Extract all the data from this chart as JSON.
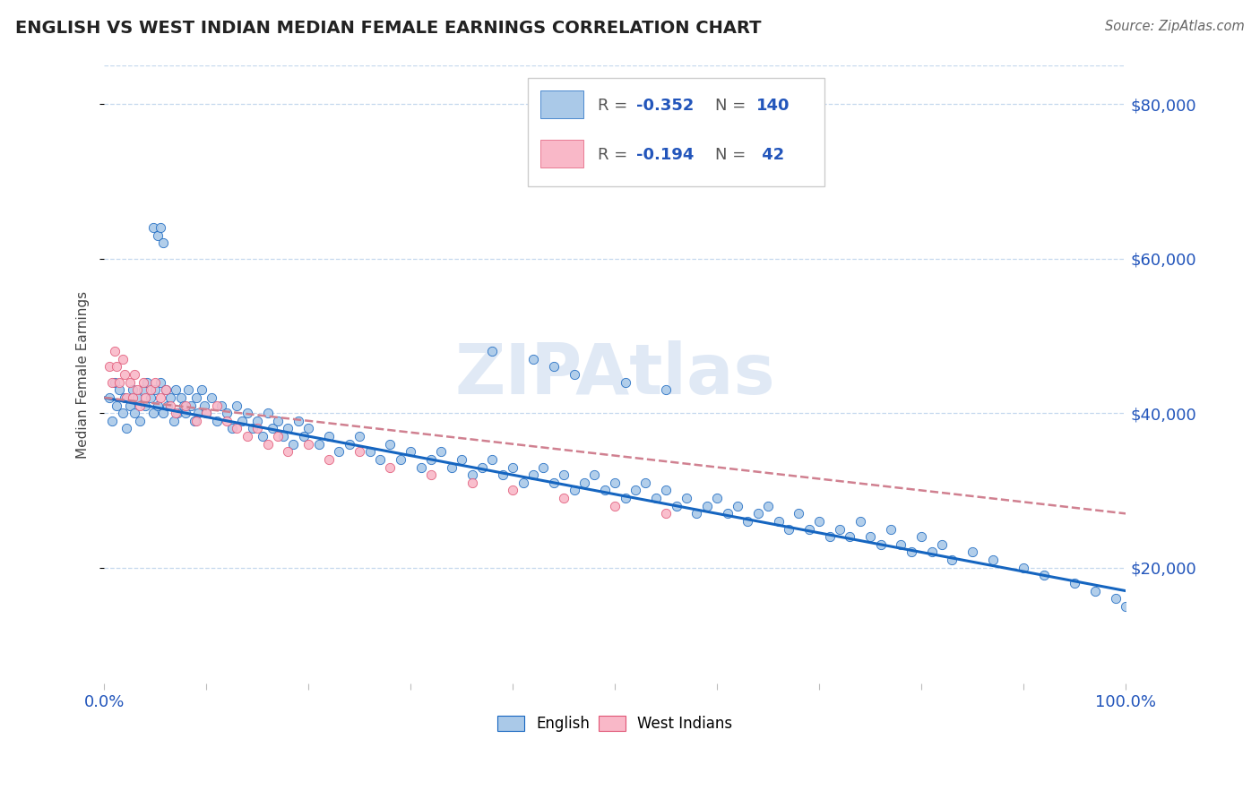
{
  "title": "ENGLISH VS WEST INDIAN MEDIAN FEMALE EARNINGS CORRELATION CHART",
  "source": "Source: ZipAtlas.com",
  "ylabel": "Median Female Earnings",
  "yticks": [
    20000,
    40000,
    60000,
    80000
  ],
  "ytick_labels": [
    "$20,000",
    "$40,000",
    "$60,000",
    "$80,000"
  ],
  "xmin": 0.0,
  "xmax": 1.0,
  "ymin": 5000,
  "ymax": 85000,
  "watermark": "ZIPAtlas",
  "english_color": "#aac9e8",
  "english_line_color": "#1565c0",
  "wi_color": "#f9b8c8",
  "wi_line_color": "#e05575",
  "wi_trend_color": "#d08090",
  "R_english": -0.352,
  "N_english": 140,
  "R_wi": -0.194,
  "N_wi": 42,
  "legend_label1": "English",
  "legend_label2": "West Indians",
  "english_scatter_x": [
    0.005,
    0.008,
    0.01,
    0.012,
    0.015,
    0.018,
    0.02,
    0.022,
    0.025,
    0.028,
    0.03,
    0.032,
    0.035,
    0.038,
    0.04,
    0.042,
    0.045,
    0.048,
    0.05,
    0.052,
    0.055,
    0.058,
    0.06,
    0.062,
    0.065,
    0.068,
    0.07,
    0.072,
    0.075,
    0.078,
    0.08,
    0.082,
    0.085,
    0.088,
    0.09,
    0.092,
    0.095,
    0.098,
    0.1,
    0.105,
    0.11,
    0.115,
    0.12,
    0.125,
    0.13,
    0.135,
    0.14,
    0.145,
    0.15,
    0.155,
    0.16,
    0.165,
    0.17,
    0.175,
    0.18,
    0.185,
    0.19,
    0.195,
    0.2,
    0.21,
    0.22,
    0.23,
    0.24,
    0.25,
    0.26,
    0.27,
    0.28,
    0.29,
    0.3,
    0.31,
    0.32,
    0.33,
    0.34,
    0.35,
    0.36,
    0.37,
    0.38,
    0.39,
    0.4,
    0.41,
    0.42,
    0.43,
    0.44,
    0.45,
    0.46,
    0.47,
    0.48,
    0.49,
    0.5,
    0.51,
    0.52,
    0.53,
    0.54,
    0.55,
    0.56,
    0.57,
    0.58,
    0.59,
    0.6,
    0.61,
    0.62,
    0.63,
    0.64,
    0.65,
    0.66,
    0.67,
    0.68,
    0.69,
    0.7,
    0.71,
    0.72,
    0.73,
    0.74,
    0.75,
    0.76,
    0.77,
    0.78,
    0.79,
    0.8,
    0.81,
    0.82,
    0.83,
    0.85,
    0.87,
    0.9,
    0.92,
    0.95,
    0.97,
    0.99,
    1.0,
    0.048,
    0.052,
    0.055,
    0.058,
    0.38,
    0.42,
    0.44,
    0.46,
    0.51,
    0.55
  ],
  "english_scatter_y": [
    42000,
    39000,
    44000,
    41000,
    43000,
    40000,
    42000,
    38000,
    41000,
    43000,
    40000,
    42000,
    39000,
    43000,
    41000,
    44000,
    42000,
    40000,
    43000,
    41000,
    44000,
    40000,
    43000,
    41000,
    42000,
    39000,
    43000,
    40000,
    42000,
    41000,
    40000,
    43000,
    41000,
    39000,
    42000,
    40000,
    43000,
    41000,
    40000,
    42000,
    39000,
    41000,
    40000,
    38000,
    41000,
    39000,
    40000,
    38000,
    39000,
    37000,
    40000,
    38000,
    39000,
    37000,
    38000,
    36000,
    39000,
    37000,
    38000,
    36000,
    37000,
    35000,
    36000,
    37000,
    35000,
    34000,
    36000,
    34000,
    35000,
    33000,
    34000,
    35000,
    33000,
    34000,
    32000,
    33000,
    34000,
    32000,
    33000,
    31000,
    32000,
    33000,
    31000,
    32000,
    30000,
    31000,
    32000,
    30000,
    31000,
    29000,
    30000,
    31000,
    29000,
    30000,
    28000,
    29000,
    27000,
    28000,
    29000,
    27000,
    28000,
    26000,
    27000,
    28000,
    26000,
    25000,
    27000,
    25000,
    26000,
    24000,
    25000,
    24000,
    26000,
    24000,
    23000,
    25000,
    23000,
    22000,
    24000,
    22000,
    23000,
    21000,
    22000,
    21000,
    20000,
    19000,
    18000,
    17000,
    16000,
    15000,
    64000,
    63000,
    64000,
    62000,
    48000,
    47000,
    46000,
    45000,
    44000,
    43000
  ],
  "wi_scatter_x": [
    0.005,
    0.008,
    0.01,
    0.012,
    0.015,
    0.018,
    0.02,
    0.022,
    0.025,
    0.028,
    0.03,
    0.032,
    0.035,
    0.038,
    0.04,
    0.045,
    0.05,
    0.055,
    0.06,
    0.065,
    0.07,
    0.08,
    0.09,
    0.1,
    0.11,
    0.12,
    0.13,
    0.14,
    0.15,
    0.16,
    0.17,
    0.18,
    0.2,
    0.22,
    0.25,
    0.28,
    0.32,
    0.36,
    0.4,
    0.45,
    0.5,
    0.55
  ],
  "wi_scatter_y": [
    46000,
    44000,
    48000,
    46000,
    44000,
    47000,
    45000,
    42000,
    44000,
    42000,
    45000,
    43000,
    41000,
    44000,
    42000,
    43000,
    44000,
    42000,
    43000,
    41000,
    40000,
    41000,
    39000,
    40000,
    41000,
    39000,
    38000,
    37000,
    38000,
    36000,
    37000,
    35000,
    36000,
    34000,
    35000,
    33000,
    32000,
    31000,
    30000,
    29000,
    28000,
    27000
  ]
}
